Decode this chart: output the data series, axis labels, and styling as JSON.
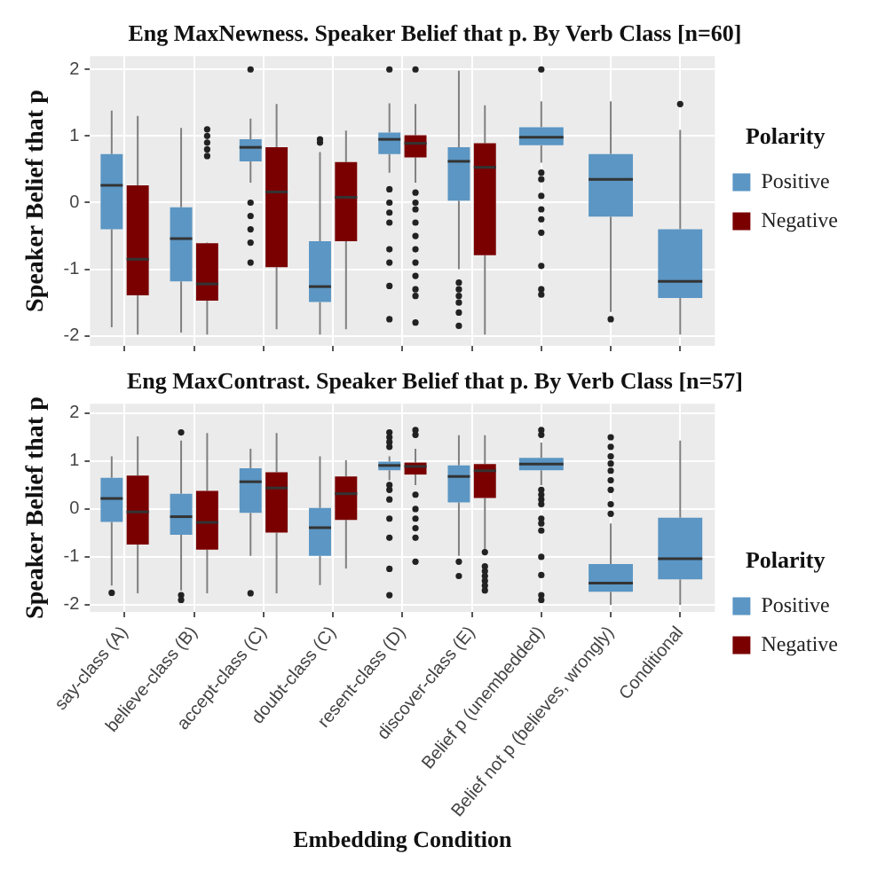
{
  "chart_data": [
    {
      "type": "box",
      "title": "Eng MaxNewness. Speaker Belief that p. By Verb Class [n=60]",
      "ylabel": "Speaker Belief that p",
      "legend_title": "Polarity",
      "legend": "right",
      "grid": true,
      "tick_labels": "y",
      "ylim": [
        -2.15,
        2.2
      ],
      "yticks": [
        -2,
        -1,
        0,
        1,
        2
      ],
      "categories": [
        null,
        null,
        null,
        null,
        null,
        null,
        null,
        null,
        null
      ],
      "series": [
        {
          "name": "Positive",
          "color": "#5b96c4",
          "boxes": [
            {
              "low": -1.87,
              "q1": -0.4,
              "median": 0.26,
              "q3": 0.73,
              "high": 1.38
            },
            {
              "low": -1.95,
              "q1": -1.18,
              "median": -0.54,
              "q3": -0.07,
              "high": 1.12
            },
            {
              "low": 0.3,
              "q1": 0.62,
              "median": 0.83,
              "q3": 0.95,
              "high": 1.26,
              "outliers": [
                2,
                0,
                -0.2,
                -0.4,
                -0.6,
                -0.9
              ]
            },
            {
              "low": -1.98,
              "q1": -1.49,
              "median": -1.26,
              "q3": -0.58,
              "high": 0.76,
              "outliers": [
                0.9,
                0.95
              ]
            },
            {
              "low": 0.45,
              "q1": 0.73,
              "median": 0.95,
              "q3": 1.05,
              "high": 1.49,
              "outliers": [
                2,
                0.2,
                0,
                -0.15,
                -0.3,
                -0.7,
                -0.9,
                -1.25,
                -1.75
              ]
            },
            {
              "low": -1,
              "q1": 0.03,
              "median": 0.62,
              "q3": 0.83,
              "high": 1.98,
              "outliers": [
                -1.2,
                -1.3,
                -1.4,
                -1.5,
                -1.65,
                -1.85
              ]
            },
            {
              "low": 0.6,
              "q1": 0.86,
              "median": 0.98,
              "q3": 1.13,
              "high": 1.52,
              "outliers": [
                2,
                0.45,
                0.35,
                0.1,
                -0.1,
                -0.25,
                -0.45,
                -0.95,
                -1.3,
                -1.38
              ]
            },
            {
              "low": -1.64,
              "q1": -0.21,
              "median": 0.35,
              "q3": 0.73,
              "high": 1.52,
              "outliers": [
                -1.75
              ]
            },
            {
              "low": -1.98,
              "q1": -1.43,
              "median": -1.18,
              "q3": -0.4,
              "high": 1.09,
              "outliers": [
                1.48
              ]
            }
          ]
        },
        {
          "name": "Negative",
          "color": "#7a0000",
          "boxes": [
            {
              "low": -1.98,
              "q1": -1.39,
              "median": -0.85,
              "q3": 0.26,
              "high": 1.3
            },
            {
              "low": -1.98,
              "q1": -1.47,
              "median": -1.22,
              "q3": -0.61,
              "high": -0.6,
              "outliers": [
                0.7,
                0.8,
                0.9,
                1,
                1.1
              ]
            },
            {
              "low": -1.9,
              "q1": -0.97,
              "median": 0.16,
              "q3": 0.83,
              "high": 1.48
            },
            {
              "low": -1.9,
              "q1": -0.58,
              "median": 0.08,
              "q3": 0.61,
              "high": 1.08
            },
            {
              "low": 0.3,
              "q1": 0.68,
              "median": 0.89,
              "q3": 1.01,
              "high": 1.48,
              "outliers": [
                2,
                0.15,
                0,
                -0.1,
                -0.3,
                -0.5,
                -0.7,
                -0.9,
                -1.1,
                -1.3,
                -1.4,
                -1.8
              ]
            },
            {
              "low": -1.98,
              "q1": -0.79,
              "median": 0.53,
              "q3": 0.89,
              "high": 1.46
            },
            null,
            null,
            null
          ]
        }
      ]
    },
    {
      "type": "box",
      "title": "Eng MaxContrast. Speaker Belief that p. By Verb Class [n=57]",
      "ylabel": "Speaker Belief that p",
      "xlabel": "Embedding Condition",
      "legend_title": "Polarity",
      "legend": "right",
      "grid": true,
      "ylim": [
        -2.15,
        2.2
      ],
      "yticks": [
        -2,
        -1,
        0,
        1,
        2
      ],
      "categories": [
        "say-class (A)",
        "believe-class (B)",
        "accept-class (C)",
        "doubt-class (C)",
        "resent-class (D)",
        "discover-class (E)",
        "Belief p (unembedded)",
        "Belief not p (believes, wrongly)",
        "Conditional"
      ],
      "series": [
        {
          "name": "Positive",
          "color": "#5b96c4",
          "boxes": [
            {
              "low": -1.6,
              "q1": -0.27,
              "median": 0.22,
              "q3": 0.65,
              "high": 1.1,
              "outliers": [
                -1.75
              ]
            },
            {
              "low": -1.7,
              "q1": -0.54,
              "median": -0.16,
              "q3": 0.32,
              "high": 1.43,
              "outliers": [
                1.6,
                -1.8,
                -1.9
              ]
            },
            {
              "low": -0.98,
              "q1": -0.08,
              "median": 0.57,
              "q3": 0.85,
              "high": 1.26,
              "outliers": [
                -1.76
              ]
            },
            {
              "low": -1.59,
              "q1": -0.98,
              "median": -0.39,
              "q3": 0.02,
              "high": 1.1
            },
            {
              "low": 0.6,
              "q1": 0.81,
              "median": 0.91,
              "q3": 0.99,
              "high": 1.1,
              "outliers": [
                1.6,
                1.5,
                1.4,
                1.3,
                0.5,
                0.4,
                0.2,
                -0.2,
                -0.6,
                -1.25,
                -1.8
              ]
            },
            {
              "low": -0.98,
              "q1": 0.14,
              "median": 0.68,
              "q3": 0.91,
              "high": 1.54,
              "outliers": [
                -1.1,
                -1.4
              ]
            },
            {
              "low": 0.5,
              "q1": 0.81,
              "median": 0.94,
              "q3": 1.07,
              "high": 1.39,
              "outliers": [
                1.65,
                1.55,
                0.4,
                0.3,
                0.2,
                0.1,
                -0.2,
                -0.3,
                -0.45,
                -1,
                -1.38,
                -1.8,
                -1.9
              ]
            },
            {
              "low": -2,
              "q1": -1.73,
              "median": -1.55,
              "q3": -1.15,
              "high": -0.3,
              "outliers": [
                1.5,
                1.3,
                1.1,
                0.95,
                0.8,
                0.6,
                0.4,
                0.1,
                -0.1
              ]
            },
            {
              "low": -2,
              "q1": -1.47,
              "median": -1.04,
              "q3": -0.18,
              "high": 1.43
            }
          ]
        },
        {
          "name": "Negative",
          "color": "#7a0000",
          "boxes": [
            {
              "low": -1.76,
              "q1": -0.74,
              "median": -0.06,
              "q3": 0.7,
              "high": 1.52
            },
            {
              "low": -1.76,
              "q1": -0.85,
              "median": -0.28,
              "q3": 0.38,
              "high": 1.59
            },
            {
              "low": -1.76,
              "q1": -0.49,
              "median": 0.44,
              "q3": 0.77,
              "high": 1.59
            },
            {
              "low": -1.24,
              "q1": -0.23,
              "median": 0.32,
              "q3": 0.68,
              "high": 1.02
            },
            {
              "low": 0.5,
              "q1": 0.72,
              "median": 0.89,
              "q3": 0.97,
              "high": 1.26,
              "outliers": [
                1.65,
                1.55,
                0.3,
                0,
                -0.2,
                -0.4,
                -0.6,
                -1.1
              ]
            },
            {
              "low": -0.84,
              "q1": 0.23,
              "median": 0.8,
              "q3": 0.94,
              "high": 1.54,
              "outliers": [
                -0.9,
                -1.2,
                -1.3,
                -1.4,
                -1.5,
                -1.6,
                -1.7
              ]
            },
            null,
            null,
            null
          ]
        }
      ]
    }
  ]
}
